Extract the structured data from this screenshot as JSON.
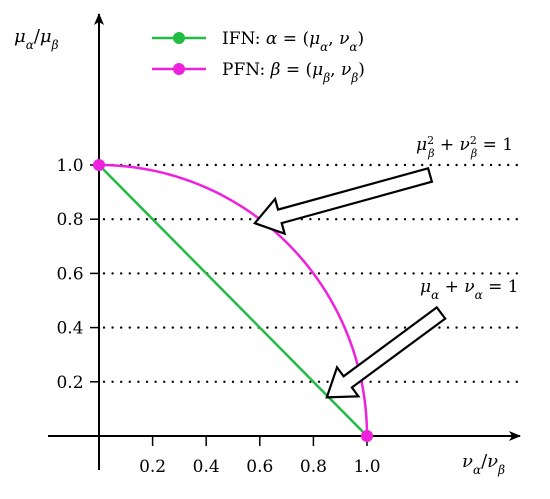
{
  "chart_data": {
    "type": "line",
    "xlabel": "να/νβ",
    "ylabel": "μα/μβ",
    "xlim": [
      0,
      1.2
    ],
    "ylim": [
      0,
      1.1
    ],
    "xticks": [
      "0.2",
      "0.4",
      "0.6",
      "0.8",
      "1.0"
    ],
    "yticks": [
      "0.2",
      "0.4",
      "0.6",
      "0.8",
      "1.0"
    ],
    "ytick_values": [
      0.2,
      0.4,
      0.6,
      0.8,
      1.0
    ],
    "grid": "horizontal dotted lines at y tick values",
    "legend_placement": "top",
    "series": [
      {
        "name": "IFN: α = (μα, να)",
        "color": "#22bb44",
        "curve": "line",
        "x": [
          0,
          1
        ],
        "y": [
          1,
          0
        ]
      },
      {
        "name": "PFN: β = (μβ, νβ)",
        "color": "#ee22dd",
        "curve": "circle-arc",
        "x": [
          0,
          0.6,
          0.8,
          1
        ],
        "y": [
          1,
          0.8,
          0.6,
          0
        ]
      }
    ],
    "annotations": [
      {
        "text": "μβ² + νβ² = 1",
        "target_series": 1
      },
      {
        "text": "μα + να = 1",
        "target_series": 0
      }
    ]
  }
}
